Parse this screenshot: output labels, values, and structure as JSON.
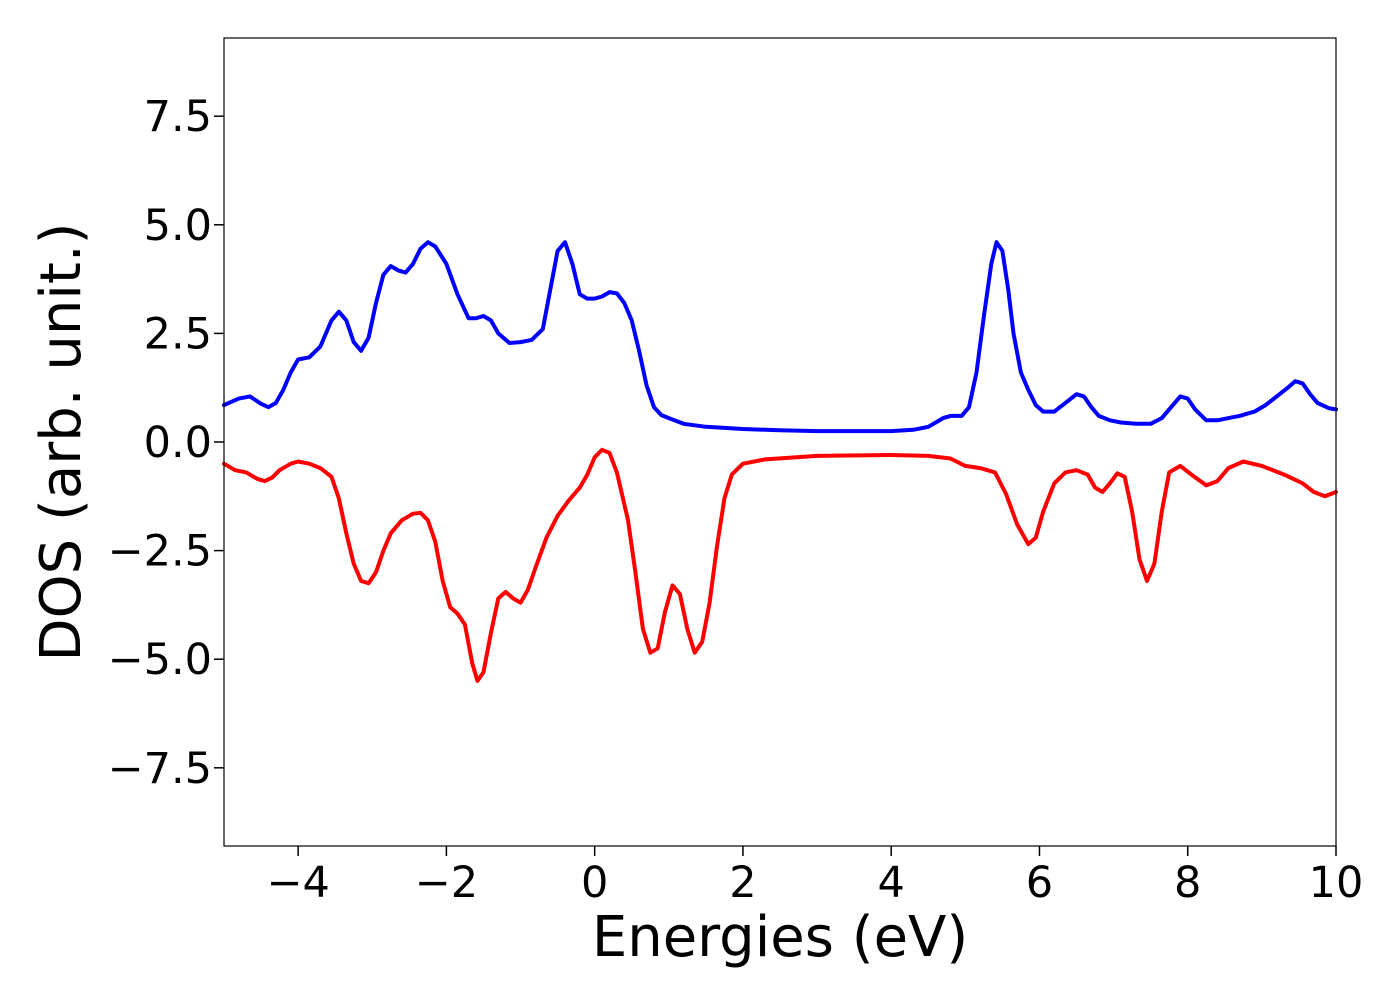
{
  "chart_data": {
    "type": "line",
    "title": "",
    "xlabel": "Energies (eV)",
    "ylabel": "DOS (arb. unit.)",
    "xlim": [
      -5,
      10
    ],
    "ylim": [
      -9.3,
      9.3
    ],
    "xticks": [
      -4,
      -2,
      0,
      2,
      4,
      6,
      8,
      10
    ],
    "xtick_labels": [
      "−4",
      "−2",
      "0",
      "2",
      "4",
      "6",
      "8",
      "10"
    ],
    "yticks": [
      -7.5,
      -5.0,
      -2.5,
      0.0,
      2.5,
      5.0,
      7.5
    ],
    "ytick_labels": [
      "−7.5",
      "−5.0",
      "−2.5",
      "0.0",
      "2.5",
      "5.0",
      "7.5"
    ],
    "grid": false,
    "series": [
      {
        "color": "#0000ff",
        "points": [
          [
            -5.0,
            0.85
          ],
          [
            -4.8,
            1.0
          ],
          [
            -4.65,
            1.05
          ],
          [
            -4.5,
            0.88
          ],
          [
            -4.4,
            0.8
          ],
          [
            -4.3,
            0.9
          ],
          [
            -4.2,
            1.2
          ],
          [
            -4.1,
            1.6
          ],
          [
            -4.0,
            1.9
          ],
          [
            -3.85,
            1.95
          ],
          [
            -3.7,
            2.2
          ],
          [
            -3.55,
            2.8
          ],
          [
            -3.45,
            3.0
          ],
          [
            -3.35,
            2.8
          ],
          [
            -3.25,
            2.3
          ],
          [
            -3.15,
            2.1
          ],
          [
            -3.05,
            2.4
          ],
          [
            -2.95,
            3.2
          ],
          [
            -2.85,
            3.85
          ],
          [
            -2.75,
            4.05
          ],
          [
            -2.65,
            3.95
          ],
          [
            -2.55,
            3.9
          ],
          [
            -2.45,
            4.1
          ],
          [
            -2.35,
            4.45
          ],
          [
            -2.25,
            4.6
          ],
          [
            -2.15,
            4.5
          ],
          [
            -2.0,
            4.1
          ],
          [
            -1.85,
            3.4
          ],
          [
            -1.7,
            2.85
          ],
          [
            -1.6,
            2.85
          ],
          [
            -1.5,
            2.9
          ],
          [
            -1.4,
            2.8
          ],
          [
            -1.3,
            2.5
          ],
          [
            -1.15,
            2.28
          ],
          [
            -1.0,
            2.3
          ],
          [
            -0.85,
            2.35
          ],
          [
            -0.7,
            2.6
          ],
          [
            -0.6,
            3.5
          ],
          [
            -0.5,
            4.4
          ],
          [
            -0.4,
            4.6
          ],
          [
            -0.3,
            4.1
          ],
          [
            -0.2,
            3.4
          ],
          [
            -0.1,
            3.3
          ],
          [
            0.0,
            3.3
          ],
          [
            0.1,
            3.35
          ],
          [
            0.2,
            3.45
          ],
          [
            0.3,
            3.42
          ],
          [
            0.4,
            3.2
          ],
          [
            0.5,
            2.8
          ],
          [
            0.6,
            2.1
          ],
          [
            0.7,
            1.3
          ],
          [
            0.8,
            0.8
          ],
          [
            0.9,
            0.62
          ],
          [
            1.0,
            0.55
          ],
          [
            1.2,
            0.42
          ],
          [
            1.5,
            0.35
          ],
          [
            2.0,
            0.3
          ],
          [
            2.5,
            0.27
          ],
          [
            3.0,
            0.25
          ],
          [
            3.5,
            0.25
          ],
          [
            4.0,
            0.25
          ],
          [
            4.3,
            0.28
          ],
          [
            4.5,
            0.35
          ],
          [
            4.6,
            0.45
          ],
          [
            4.7,
            0.55
          ],
          [
            4.8,
            0.6
          ],
          [
            4.95,
            0.6
          ],
          [
            5.05,
            0.8
          ],
          [
            5.15,
            1.6
          ],
          [
            5.25,
            2.9
          ],
          [
            5.35,
            4.1
          ],
          [
            5.42,
            4.6
          ],
          [
            5.5,
            4.4
          ],
          [
            5.58,
            3.5
          ],
          [
            5.65,
            2.5
          ],
          [
            5.75,
            1.6
          ],
          [
            5.85,
            1.2
          ],
          [
            5.95,
            0.85
          ],
          [
            6.05,
            0.7
          ],
          [
            6.2,
            0.7
          ],
          [
            6.35,
            0.9
          ],
          [
            6.5,
            1.1
          ],
          [
            6.6,
            1.05
          ],
          [
            6.7,
            0.8
          ],
          [
            6.8,
            0.6
          ],
          [
            6.95,
            0.5
          ],
          [
            7.1,
            0.45
          ],
          [
            7.3,
            0.42
          ],
          [
            7.5,
            0.42
          ],
          [
            7.65,
            0.55
          ],
          [
            7.8,
            0.85
          ],
          [
            7.9,
            1.05
          ],
          [
            8.0,
            1.0
          ],
          [
            8.1,
            0.75
          ],
          [
            8.25,
            0.5
          ],
          [
            8.4,
            0.5
          ],
          [
            8.55,
            0.55
          ],
          [
            8.7,
            0.6
          ],
          [
            8.9,
            0.7
          ],
          [
            9.05,
            0.85
          ],
          [
            9.2,
            1.05
          ],
          [
            9.35,
            1.25
          ],
          [
            9.45,
            1.4
          ],
          [
            9.55,
            1.35
          ],
          [
            9.65,
            1.1
          ],
          [
            9.75,
            0.9
          ],
          [
            9.9,
            0.78
          ],
          [
            10.0,
            0.75
          ]
        ]
      },
      {
        "color": "#ff0000",
        "points": [
          [
            -5.0,
            -0.5
          ],
          [
            -4.85,
            -0.65
          ],
          [
            -4.7,
            -0.7
          ],
          [
            -4.55,
            -0.85
          ],
          [
            -4.45,
            -0.9
          ],
          [
            -4.35,
            -0.82
          ],
          [
            -4.25,
            -0.65
          ],
          [
            -4.1,
            -0.5
          ],
          [
            -4.0,
            -0.45
          ],
          [
            -3.85,
            -0.5
          ],
          [
            -3.7,
            -0.6
          ],
          [
            -3.55,
            -0.8
          ],
          [
            -3.45,
            -1.3
          ],
          [
            -3.35,
            -2.1
          ],
          [
            -3.25,
            -2.8
          ],
          [
            -3.15,
            -3.2
          ],
          [
            -3.05,
            -3.25
          ],
          [
            -2.95,
            -3.0
          ],
          [
            -2.85,
            -2.5
          ],
          [
            -2.75,
            -2.1
          ],
          [
            -2.6,
            -1.8
          ],
          [
            -2.45,
            -1.65
          ],
          [
            -2.35,
            -1.63
          ],
          [
            -2.25,
            -1.8
          ],
          [
            -2.15,
            -2.3
          ],
          [
            -2.05,
            -3.2
          ],
          [
            -1.95,
            -3.8
          ],
          [
            -1.85,
            -3.95
          ],
          [
            -1.75,
            -4.2
          ],
          [
            -1.65,
            -5.1
          ],
          [
            -1.58,
            -5.5
          ],
          [
            -1.5,
            -5.3
          ],
          [
            -1.4,
            -4.4
          ],
          [
            -1.3,
            -3.6
          ],
          [
            -1.2,
            -3.45
          ],
          [
            -1.1,
            -3.6
          ],
          [
            -1.0,
            -3.7
          ],
          [
            -0.9,
            -3.4
          ],
          [
            -0.8,
            -2.9
          ],
          [
            -0.65,
            -2.2
          ],
          [
            -0.5,
            -1.7
          ],
          [
            -0.35,
            -1.35
          ],
          [
            -0.2,
            -1.05
          ],
          [
            -0.1,
            -0.75
          ],
          [
            0.0,
            -0.35
          ],
          [
            0.1,
            -0.18
          ],
          [
            0.2,
            -0.25
          ],
          [
            0.3,
            -0.7
          ],
          [
            0.45,
            -1.8
          ],
          [
            0.55,
            -3.0
          ],
          [
            0.65,
            -4.3
          ],
          [
            0.75,
            -4.85
          ],
          [
            0.85,
            -4.75
          ],
          [
            0.95,
            -3.9
          ],
          [
            1.05,
            -3.3
          ],
          [
            1.15,
            -3.5
          ],
          [
            1.25,
            -4.3
          ],
          [
            1.35,
            -4.85
          ],
          [
            1.45,
            -4.6
          ],
          [
            1.55,
            -3.7
          ],
          [
            1.65,
            -2.4
          ],
          [
            1.75,
            -1.3
          ],
          [
            1.85,
            -0.75
          ],
          [
            2.0,
            -0.5
          ],
          [
            2.3,
            -0.4
          ],
          [
            3.0,
            -0.32
          ],
          [
            4.0,
            -0.3
          ],
          [
            4.5,
            -0.32
          ],
          [
            4.8,
            -0.38
          ],
          [
            5.0,
            -0.55
          ],
          [
            5.2,
            -0.6
          ],
          [
            5.4,
            -0.7
          ],
          [
            5.55,
            -1.2
          ],
          [
            5.7,
            -1.9
          ],
          [
            5.85,
            -2.35
          ],
          [
            5.95,
            -2.2
          ],
          [
            6.05,
            -1.6
          ],
          [
            6.2,
            -0.95
          ],
          [
            6.35,
            -0.7
          ],
          [
            6.5,
            -0.65
          ],
          [
            6.65,
            -0.75
          ],
          [
            6.75,
            -1.05
          ],
          [
            6.85,
            -1.15
          ],
          [
            6.95,
            -0.95
          ],
          [
            7.05,
            -0.72
          ],
          [
            7.15,
            -0.8
          ],
          [
            7.25,
            -1.6
          ],
          [
            7.35,
            -2.7
          ],
          [
            7.45,
            -3.2
          ],
          [
            7.55,
            -2.8
          ],
          [
            7.65,
            -1.6
          ],
          [
            7.75,
            -0.7
          ],
          [
            7.9,
            -0.55
          ],
          [
            8.05,
            -0.75
          ],
          [
            8.25,
            -1.0
          ],
          [
            8.4,
            -0.9
          ],
          [
            8.55,
            -0.6
          ],
          [
            8.75,
            -0.45
          ],
          [
            9.0,
            -0.55
          ],
          [
            9.3,
            -0.75
          ],
          [
            9.55,
            -0.95
          ],
          [
            9.7,
            -1.15
          ],
          [
            9.85,
            -1.25
          ],
          [
            10.0,
            -1.15
          ]
        ]
      }
    ]
  }
}
